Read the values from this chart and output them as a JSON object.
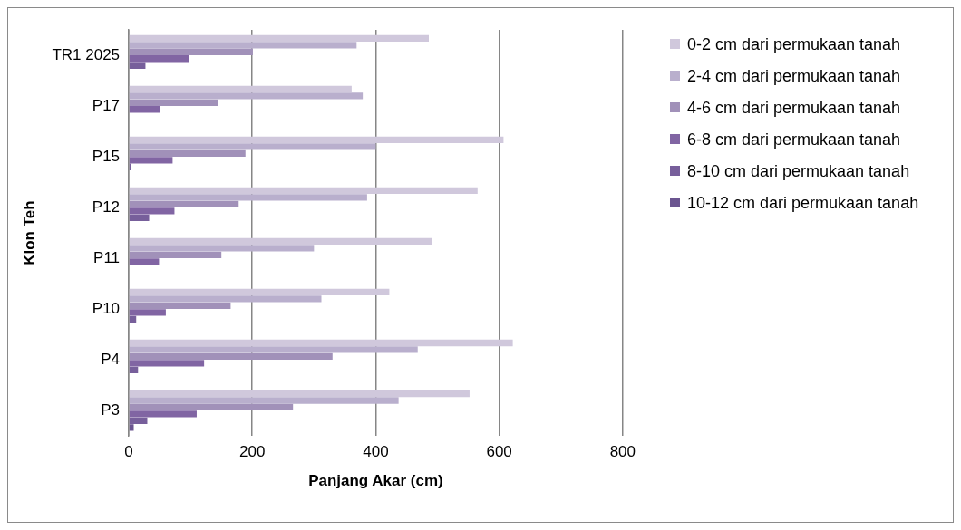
{
  "chart_data": {
    "type": "bar",
    "orientation": "horizontal",
    "xlabel": "Panjang Akar (cm)",
    "ylabel": "Klon Teh",
    "categories": [
      "TR1 2025",
      "P17",
      "P15",
      "P12",
      "P11",
      "P10",
      "P4",
      "P3"
    ],
    "series": [
      {
        "name": "0-2 cm dari permukaan tanah",
        "color": "#d0c8dc",
        "values": [
          486,
          361,
          607,
          565,
          491,
          422,
          622,
          552
        ]
      },
      {
        "name": "2-4 cm dari permukaan tanah",
        "color": "#b9afcd",
        "values": [
          369,
          379,
          400,
          386,
          300,
          312,
          468,
          437
        ]
      },
      {
        "name": "4-6 cm dari permukaan tanah",
        "color": "#a191b9",
        "values": [
          201,
          145,
          189,
          178,
          150,
          165,
          330,
          266
        ]
      },
      {
        "name": "6-8 cm dari permukaan tanah",
        "color": "#8165a3",
        "values": [
          97,
          51,
          71,
          74,
          49,
          60,
          122,
          110
        ]
      },
      {
        "name": "8-10 cm dari permukaan tanah",
        "color": "#775f9b",
        "values": [
          27,
          0,
          3,
          33,
          0,
          12,
          15,
          30
        ]
      },
      {
        "name": "10-12 cm dari permukaan tanah",
        "color": "#6b5590",
        "values": [
          0,
          0,
          0,
          null,
          0,
          null,
          0,
          8
        ]
      }
    ],
    "xlim": [
      0,
      800
    ],
    "xticks": [
      0,
      200,
      400,
      600,
      800
    ],
    "grid": "x",
    "legend": "right"
  }
}
